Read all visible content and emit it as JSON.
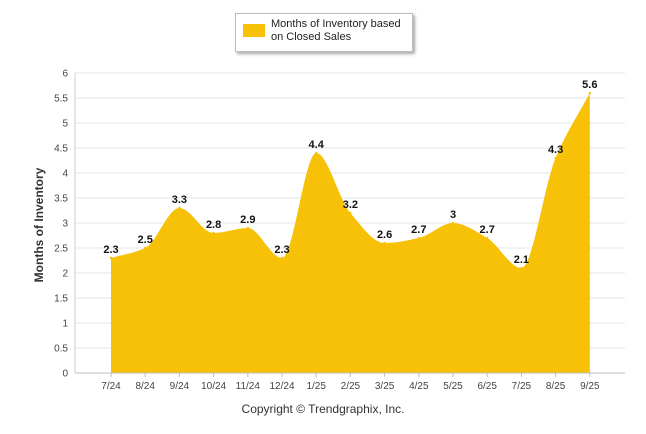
{
  "chart_data": {
    "type": "area",
    "categories": [
      "7/24",
      "8/24",
      "9/24",
      "10/24",
      "11/24",
      "12/24",
      "1/25",
      "2/25",
      "3/25",
      "4/25",
      "5/25",
      "6/25",
      "7/25",
      "8/25",
      "9/25"
    ],
    "series": [
      {
        "name": "Months of Inventory based on Closed Sales",
        "values": [
          2.3,
          2.5,
          3.3,
          2.8,
          2.9,
          2.3,
          4.4,
          3.2,
          2.6,
          2.7,
          3,
          2.7,
          2.1,
          4.3,
          5.6
        ],
        "color": "#f7c108"
      }
    ],
    "data_labels": [
      "2.3",
      "2.5",
      "3.3",
      "2.8",
      "2.9",
      "2.3",
      "4.4",
      "3.2",
      "2.6",
      "2.7",
      "3",
      "2.7",
      "2.1",
      "4.3",
      "5.6"
    ],
    "ylabel": "Months of Inventory",
    "xlabel": "",
    "ylim": [
      0,
      6
    ],
    "yticks": [
      "0",
      "0.5",
      "1",
      "1.5",
      "2",
      "2.5",
      "3",
      "3.5",
      "4",
      "4.5",
      "5",
      "5.5",
      "6"
    ],
    "grid": true,
    "legend_position": "top-center"
  },
  "legend": {
    "label": "Months of Inventory based on Closed Sales",
    "color": "#f7c108"
  },
  "footer": {
    "copyright": "Copyright © Trendgraphix, Inc."
  }
}
